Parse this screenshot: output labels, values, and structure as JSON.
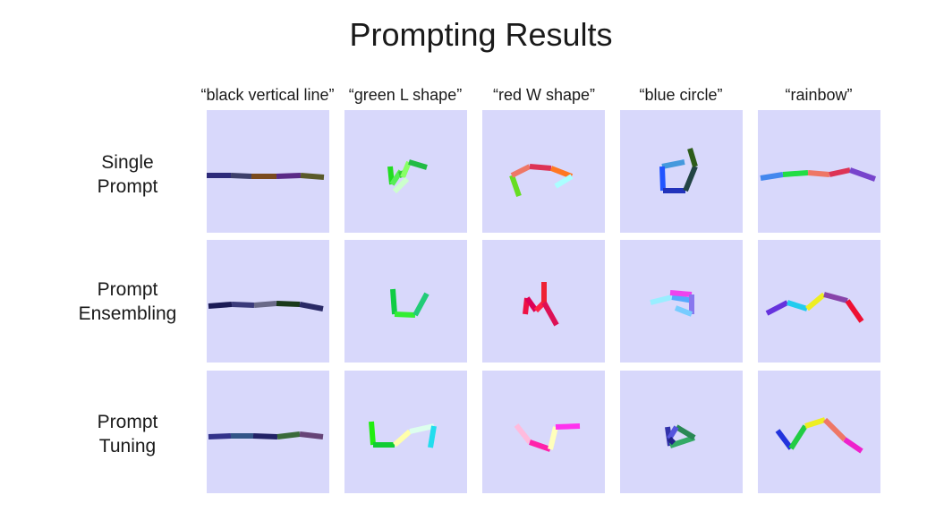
{
  "title": "Prompting Results",
  "columns": [
    "“black vertical line”",
    "“green L shape”",
    "“red W shape”",
    "“blue circle”",
    "“rainbow”"
  ],
  "rows": [
    {
      "label_line1": "Single",
      "label_line2": "Prompt"
    },
    {
      "label_line1": "Prompt",
      "label_line2": "Ensembling"
    },
    {
      "label_line1": "Prompt",
      "label_line2": "Tuning"
    }
  ],
  "cell_background": "#d8d8fb",
  "grid": [
    [
      [
        {
          "p": [
            [
              0,
              73
            ],
            [
              27,
              73
            ]
          ],
          "c": "#2d2a7a"
        },
        {
          "p": [
            [
              27,
              73
            ],
            [
              50,
              74
            ]
          ],
          "c": "#3d3f6a"
        },
        {
          "p": [
            [
              50,
              74
            ],
            [
              78,
              74
            ]
          ],
          "c": "#7a4a1e"
        },
        {
          "p": [
            [
              78,
              74
            ],
            [
              105,
              73
            ]
          ],
          "c": "#5a2a86"
        },
        {
          "p": [
            [
              105,
              73
            ],
            [
              131,
              75
            ]
          ],
          "c": "#5a5a2a"
        }
      ],
      [
        {
          "p": [
            [
              51,
              63
            ],
            [
              53,
              83
            ]
          ],
          "c": "#22dd22"
        },
        {
          "p": [
            [
              53,
              83
            ],
            [
              63,
              68
            ]
          ],
          "c": "#55ee55"
        },
        {
          "p": [
            [
              63,
              68
            ],
            [
              65,
              75
            ]
          ],
          "c": "#33cc33"
        },
        {
          "p": [
            [
              65,
              75
            ],
            [
              72,
              58
            ]
          ],
          "c": "#88ff66"
        },
        {
          "p": [
            [
              72,
              58
            ],
            [
              92,
              64
            ]
          ],
          "c": "#22bb44"
        },
        {
          "p": [
            [
              56,
              91
            ],
            [
              70,
              77
            ]
          ],
          "c": "#ccffcc"
        }
      ],
      [
        {
          "p": [
            [
              33,
              73
            ],
            [
              41,
              96
            ]
          ],
          "c": "#66dd22"
        },
        {
          "p": [
            [
              33,
              73
            ],
            [
              53,
              63
            ]
          ],
          "c": "#ee7766"
        },
        {
          "p": [
            [
              53,
              63
            ],
            [
              77,
              65
            ]
          ],
          "c": "#dd3355"
        },
        {
          "p": [
            [
              77,
              65
            ],
            [
              100,
              74
            ]
          ],
          "c": "#ff7722"
        },
        {
          "p": [
            [
              100,
              74
            ],
            [
              82,
              85
            ]
          ],
          "c": "#aaffff"
        }
      ],
      [
        {
          "p": [
            [
              47,
              63
            ],
            [
              72,
              58
            ]
          ],
          "c": "#4499dd"
        },
        {
          "p": [
            [
              47,
              63
            ],
            [
              48,
              90
            ]
          ],
          "c": "#2255ff"
        },
        {
          "p": [
            [
              48,
              90
            ],
            [
              73,
              90
            ]
          ],
          "c": "#2233bb"
        },
        {
          "p": [
            [
              73,
              90
            ],
            [
              84,
              63
            ]
          ],
          "c": "#224444"
        },
        {
          "p": [
            [
              84,
              63
            ],
            [
              78,
              43
            ]
          ],
          "c": "#2d5c1a"
        }
      ],
      [
        {
          "p": [
            [
              3,
              76
            ],
            [
              28,
              72
            ]
          ],
          "c": "#4488ee"
        },
        {
          "p": [
            [
              28,
              72
            ],
            [
              56,
              70
            ]
          ],
          "c": "#22dd44"
        },
        {
          "p": [
            [
              56,
              70
            ],
            [
              80,
              72
            ]
          ],
          "c": "#ee7766"
        },
        {
          "p": [
            [
              80,
              72
            ],
            [
              103,
              67
            ]
          ],
          "c": "#dd3355"
        },
        {
          "p": [
            [
              103,
              67
            ],
            [
              131,
              77
            ]
          ],
          "c": "#7744cc"
        }
      ]
    ],
    [
      [
        {
          "p": [
            [
              2,
              74
            ],
            [
              28,
              72
            ]
          ],
          "c": "#1a1a55"
        },
        {
          "p": [
            [
              28,
              72
            ],
            [
              53,
              73
            ]
          ],
          "c": "#3a3a7a"
        },
        {
          "p": [
            [
              53,
              73
            ],
            [
              78,
              71
            ]
          ],
          "c": "#6a6a88"
        },
        {
          "p": [
            [
              78,
              71
            ],
            [
              104,
              72
            ]
          ],
          "c": "#1a3a1a"
        },
        {
          "p": [
            [
              104,
              72
            ],
            [
              130,
              77
            ]
          ],
          "c": "#2a2a66"
        }
      ],
      [
        {
          "p": [
            [
              54,
              55
            ],
            [
              56,
              83
            ]
          ],
          "c": "#11cc44"
        },
        {
          "p": [
            [
              56,
              83
            ],
            [
              79,
              84
            ]
          ],
          "c": "#33ee33"
        },
        {
          "p": [
            [
              79,
              84
            ],
            [
              92,
              60
            ]
          ],
          "c": "#22cc77"
        }
      ],
      [
        {
          "p": [
            [
              48,
              83
            ],
            [
              50,
              65
            ]
          ],
          "c": "#ee1144"
        },
        {
          "p": [
            [
              50,
              65
            ],
            [
              60,
              79
            ]
          ],
          "c": "#dd0055"
        },
        {
          "p": [
            [
              60,
              79
            ],
            [
              69,
              70
            ]
          ],
          "c": "#ff2244"
        },
        {
          "p": [
            [
              69,
              70
            ],
            [
              69,
              47
            ]
          ],
          "c": "#ee2233"
        },
        {
          "p": [
            [
              69,
              70
            ],
            [
              83,
              95
            ]
          ],
          "c": "#dd1155"
        }
      ],
      [
        {
          "p": [
            [
              34,
              70
            ],
            [
              58,
              64
            ]
          ],
          "c": "#99eeff"
        },
        {
          "p": [
            [
              58,
              64
            ],
            [
              82,
              68
            ]
          ],
          "c": "#55aaff"
        },
        {
          "p": [
            [
              56,
              59
            ],
            [
              80,
              61
            ]
          ],
          "c": "#ee44ee"
        },
        {
          "p": [
            [
              80,
              61
            ],
            [
              80,
              83
            ]
          ],
          "c": "#8877ee"
        },
        {
          "p": [
            [
              80,
              83
            ],
            [
              62,
              76
            ]
          ],
          "c": "#77ccff"
        }
      ],
      [
        {
          "p": [
            [
              10,
              82
            ],
            [
              33,
              70
            ]
          ],
          "c": "#6633dd"
        },
        {
          "p": [
            [
              33,
              70
            ],
            [
              55,
              77
            ]
          ],
          "c": "#22ccee"
        },
        {
          "p": [
            [
              55,
              77
            ],
            [
              74,
              61
            ]
          ],
          "c": "#eeee22"
        },
        {
          "p": [
            [
              74,
              61
            ],
            [
              100,
              68
            ]
          ],
          "c": "#8844aa"
        },
        {
          "p": [
            [
              100,
              68
            ],
            [
              116,
              91
            ]
          ],
          "c": "#ee1133"
        }
      ]
    ],
    [
      [
        {
          "p": [
            [
              2,
              74
            ],
            [
              27,
              73
            ]
          ],
          "c": "#33338a"
        },
        {
          "p": [
            [
              27,
              73
            ],
            [
              52,
              73
            ]
          ],
          "c": "#335588"
        },
        {
          "p": [
            [
              52,
              73
            ],
            [
              79,
              74
            ]
          ],
          "c": "#222266"
        },
        {
          "p": [
            [
              79,
              74
            ],
            [
              104,
              71
            ]
          ],
          "c": "#3a6a3a"
        },
        {
          "p": [
            [
              104,
              71
            ],
            [
              130,
              74
            ]
          ],
          "c": "#664477"
        }
      ],
      [
        {
          "p": [
            [
              30,
              57
            ],
            [
              32,
              83
            ]
          ],
          "c": "#22ee11"
        },
        {
          "p": [
            [
              32,
              83
            ],
            [
              56,
              83
            ]
          ],
          "c": "#11cc33"
        },
        {
          "p": [
            [
              56,
              83
            ],
            [
              73,
              68
            ]
          ],
          "c": "#ffffaa"
        },
        {
          "p": [
            [
              73,
              68
            ],
            [
              100,
              62
            ]
          ],
          "c": "#ddffee"
        },
        {
          "p": [
            [
              100,
              62
            ],
            [
              96,
              86
            ]
          ],
          "c": "#22ddee"
        }
      ],
      [
        {
          "p": [
            [
              38,
              61
            ],
            [
              53,
              80
            ]
          ],
          "c": "#ffbbdd"
        },
        {
          "p": [
            [
              53,
              80
            ],
            [
              76,
              88
            ]
          ],
          "c": "#ff22aa"
        },
        {
          "p": [
            [
              76,
              88
            ],
            [
              82,
              63
            ]
          ],
          "c": "#ffffbb"
        },
        {
          "p": [
            [
              82,
              63
            ],
            [
              109,
              62
            ]
          ],
          "c": "#ff33ee"
        }
      ],
      [
        {
          "p": [
            [
              53,
              63
            ],
            [
              56,
              84
            ]
          ],
          "c": "#3333aa"
        },
        {
          "p": [
            [
              56,
              84
            ],
            [
              83,
              75
            ]
          ],
          "c": "#33aa66"
        },
        {
          "p": [
            [
              83,
              75
            ],
            [
              63,
              63
            ]
          ],
          "c": "#2a8855"
        },
        {
          "p": [
            [
              63,
              63
            ],
            [
              55,
              76
            ]
          ],
          "c": "#5555dd"
        },
        {
          "p": [
            [
              55,
              76
            ],
            [
              60,
              81
            ]
          ],
          "c": "#222288"
        }
      ],
      [
        {
          "p": [
            [
              22,
              67
            ],
            [
              37,
              87
            ]
          ],
          "c": "#2233dd"
        },
        {
          "p": [
            [
              37,
              87
            ],
            [
              53,
              62
            ]
          ],
          "c": "#22cc44"
        },
        {
          "p": [
            [
              53,
              62
            ],
            [
              75,
              55
            ]
          ],
          "c": "#eeee22"
        },
        {
          "p": [
            [
              75,
              55
            ],
            [
              97,
              77
            ]
          ],
          "c": "#ee7766"
        },
        {
          "p": [
            [
              97,
              77
            ],
            [
              116,
              90
            ]
          ],
          "c": "#ee22cc"
        }
      ]
    ]
  ]
}
